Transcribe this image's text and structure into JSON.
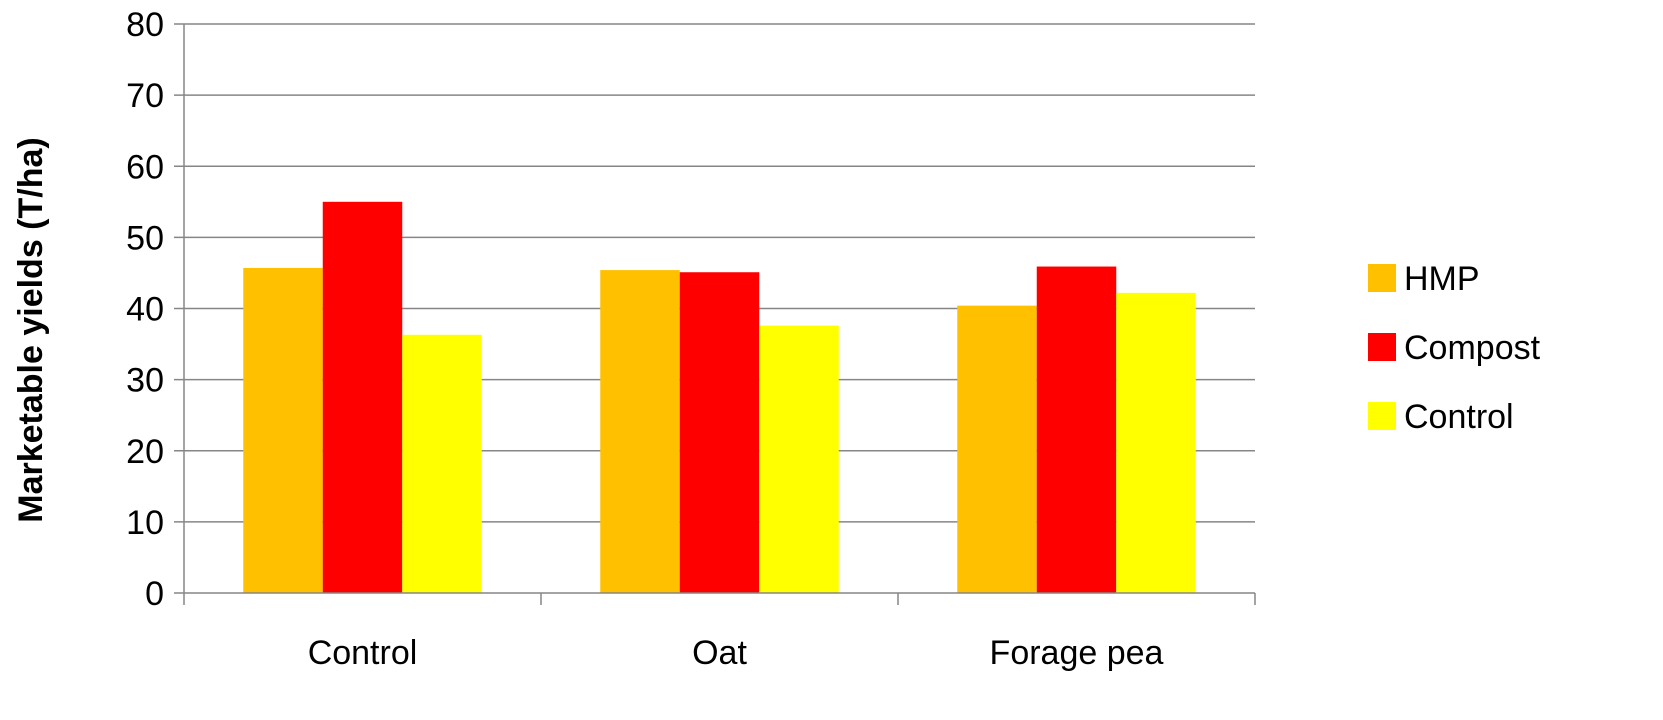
{
  "chart_data": {
    "type": "bar",
    "title": "",
    "xlabel": "",
    "ylabel": "Marketable yields (T/ha)",
    "ylim": [
      0,
      80
    ],
    "yticks": [
      0,
      10,
      20,
      30,
      40,
      50,
      60,
      70,
      80
    ],
    "grid": true,
    "legend_position": "right",
    "categories": [
      "Control",
      "Oat",
      "Forage pea"
    ],
    "series": [
      {
        "name": "HMP",
        "color": "#FFC000",
        "values": [
          45.7,
          45.4,
          40.4
        ]
      },
      {
        "name": "Compost",
        "color": "#FF0000",
        "values": [
          55.0,
          45.1,
          45.9
        ]
      },
      {
        "name": "Control",
        "color": "#FFFF00",
        "values": [
          36.3,
          37.6,
          42.2
        ]
      }
    ]
  }
}
